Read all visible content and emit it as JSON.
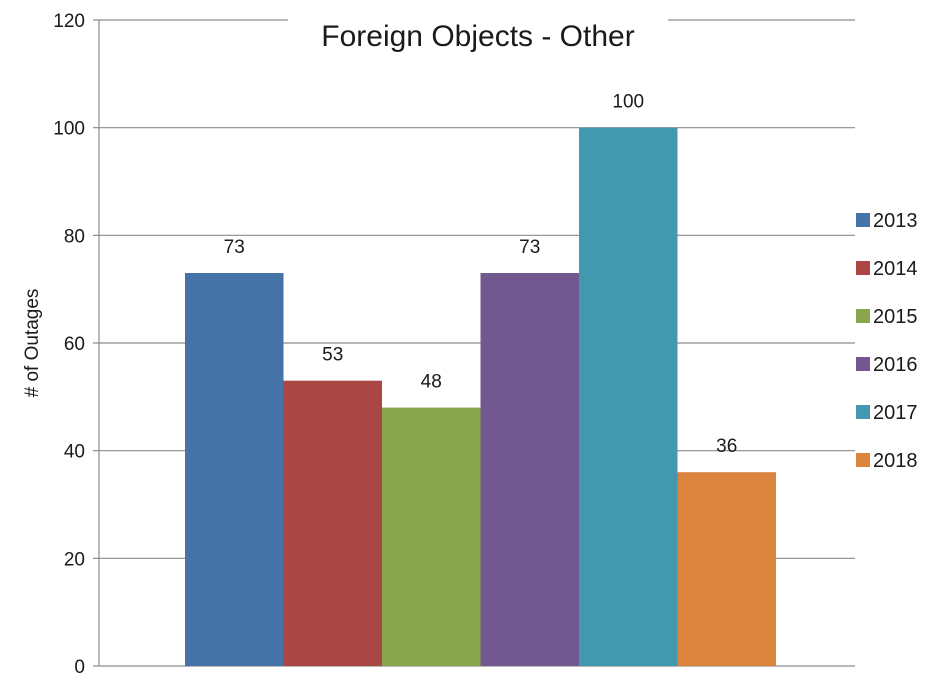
{
  "chart_data": {
    "type": "bar",
    "title": "Foreign Objects - Other",
    "xlabel": "",
    "ylabel": "# of Outages",
    "ylim": [
      0,
      120
    ],
    "yticks": [
      0,
      20,
      40,
      60,
      80,
      100,
      120
    ],
    "grid": true,
    "legend_position": "right",
    "series": [
      {
        "name": "2013",
        "value": 73,
        "color": "#4572a7"
      },
      {
        "name": "2014",
        "value": 53,
        "color": "#aa4643"
      },
      {
        "name": "2015",
        "value": 48,
        "color": "#89a54e"
      },
      {
        "name": "2016",
        "value": 73,
        "color": "#71588f"
      },
      {
        "name": "2017",
        "value": 100,
        "color": "#4198af"
      },
      {
        "name": "2018",
        "value": 36,
        "color": "#db843d"
      }
    ]
  }
}
